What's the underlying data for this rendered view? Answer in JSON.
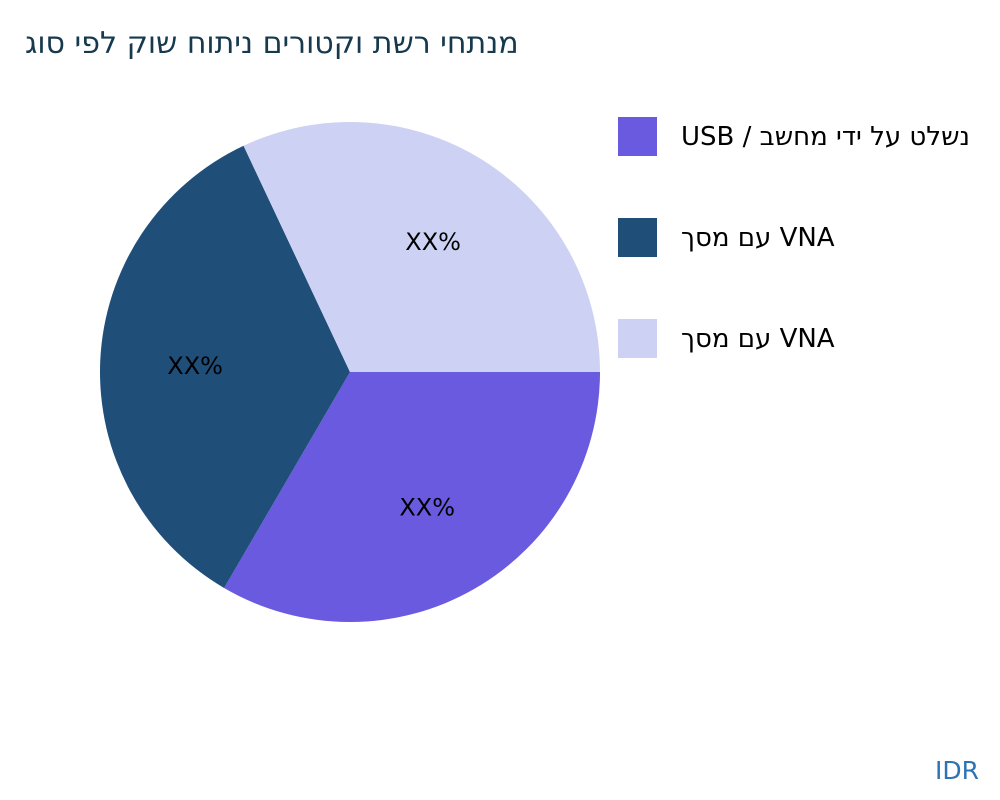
{
  "page": {
    "background_color": "#ffffff",
    "title_color": "#16394e",
    "source_color": "#2e74b5"
  },
  "title": "מנתחי רשת וקטורים ניתוח שוק לפי סוג",
  "source_label": "IDR",
  "chart_data": {
    "type": "pie",
    "title": "מנתחי רשת וקטורים ניתוח שוק לפי סוג",
    "direction": "clockwise",
    "start_angle_deg": 0,
    "legend_position": "right",
    "labels_inside": true,
    "value_label_placeholder": "XX%",
    "slices": [
      {
        "label": "נשלט על ידי מחשב / USB",
        "display_value": "XX%",
        "value": 33.4,
        "color": "#6a5ae0"
      },
      {
        "label": "VNA עם מסך",
        "display_value": "XX%",
        "value": 34.6,
        "color": "#1f4e79"
      },
      {
        "label": "VNA עם מסך",
        "display_value": "XX%",
        "value": 32.0,
        "color": "#cdd2f4"
      }
    ]
  }
}
